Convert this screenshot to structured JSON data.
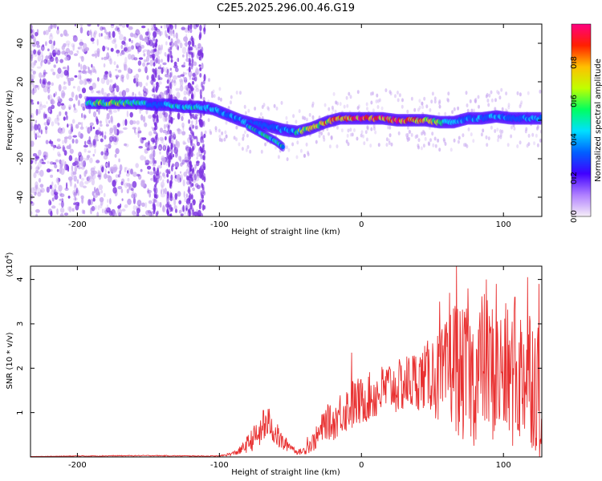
{
  "title": "C2E5.2025.296.00.46.G19",
  "chart_data": [
    {
      "type": "heatmap",
      "name": "spectrogram",
      "xlabel": "Height of straight line (km)",
      "ylabel": "Frequency (Hz)",
      "xlim": [
        -233,
        127
      ],
      "ylim": [
        -50,
        50
      ],
      "xticks": [
        -200,
        -100,
        0,
        100
      ],
      "yticks": [
        -40,
        -20,
        0,
        20,
        40
      ],
      "colorbar": {
        "label": "Normalized spectral amplitude",
        "range": [
          0,
          1
        ],
        "ticks": [
          "0.0",
          "0.2",
          "0.4",
          "0.6",
          "0.8"
        ],
        "tick_values": [
          0,
          0.2,
          0.4,
          0.6,
          0.8
        ],
        "colors": [
          "#f6eef8",
          "#b080ff",
          "#4000ff",
          "#0060ff",
          "#00e0ff",
          "#00ff60",
          "#c0ff00",
          "#ffc000",
          "#ff2000",
          "#ff0080"
        ]
      },
      "ridge": {
        "x": [
          -193,
          -185,
          -175,
          -165,
          -155,
          -145,
          -135,
          -125,
          -115,
          -105,
          -95,
          -85,
          -75,
          -65,
          -55,
          -45,
          -35,
          -25,
          -15,
          -5,
          5,
          15,
          25,
          35,
          45,
          55,
          65,
          75,
          85,
          95,
          105,
          115,
          125
        ],
        "y": [
          9,
          9,
          9,
          9,
          9,
          8,
          8,
          7,
          7,
          6,
          3,
          0,
          -2,
          -3,
          -5,
          -6,
          -4,
          -1,
          1,
          1,
          1,
          1,
          0,
          0,
          0,
          -1,
          -1,
          1,
          1,
          2,
          1,
          1,
          1
        ],
        "amplitude": [
          0.55,
          0.6,
          0.65,
          0.6,
          0.55,
          0.3,
          0.45,
          0.5,
          0.5,
          0.45,
          0.4,
          0.4,
          0.35,
          0.35,
          0.4,
          0.55,
          0.75,
          0.8,
          0.85,
          0.9,
          0.95,
          0.95,
          0.98,
          0.9,
          0.85,
          0.6,
          0.45,
          0.4,
          0.4,
          0.4,
          0.4,
          0.4,
          0.4
        ]
      },
      "branch": {
        "x": [
          -80,
          -75,
          -70,
          -65,
          -60,
          -55
        ],
        "y": [
          -3,
          -5,
          -7,
          -9,
          -11,
          -14
        ]
      }
    },
    {
      "type": "line",
      "name": "snr",
      "xlabel": "Height of straight line (km)",
      "ylabel": "SNR (10 * v/v)",
      "y_multiplier": "(x10^4)",
      "y_multiplier_base": "(x10",
      "y_multiplier_exp": "4",
      "y_multiplier_close": ")",
      "xlim": [
        -233,
        127
      ],
      "ylim": [
        0,
        4.3
      ],
      "xticks": [
        -200,
        -100,
        0,
        100
      ],
      "yticks": [
        1,
        2,
        3,
        4
      ],
      "color": "#e83030",
      "series": [
        {
          "name": "SNR",
          "x": [
            -233,
            -200,
            -150,
            -110,
            -100,
            -95,
            -90,
            -85,
            -80,
            -75,
            -70,
            -65,
            -60,
            -55,
            -50,
            -45,
            -40,
            -35,
            -30,
            -25,
            -20,
            -15,
            -10,
            -5,
            0,
            5,
            10,
            15,
            20,
            25,
            30,
            35,
            40,
            45,
            50,
            55,
            60,
            65,
            70,
            75,
            80,
            85,
            90,
            95,
            100,
            105,
            110,
            115,
            120,
            125,
            127
          ],
          "y": [
            0.01,
            0.02,
            0.03,
            0.02,
            0.02,
            0.05,
            0.08,
            0.15,
            0.3,
            0.45,
            0.55,
            0.8,
            0.5,
            0.3,
            0.25,
            0.1,
            0.15,
            0.3,
            0.5,
            0.8,
            0.75,
            1.0,
            1.1,
            1.2,
            1.25,
            1.35,
            1.4,
            1.5,
            1.6,
            1.55,
            1.65,
            1.7,
            1.75,
            1.8,
            1.9,
            1.7,
            1.8,
            2.2,
            1.8,
            1.9,
            1.7,
            2.2,
            2.0,
            1.8,
            1.9,
            1.8,
            1.7,
            2.0,
            1.9,
            1.5,
            1.4
          ],
          "noise_amplitude": [
            0,
            0.01,
            0.01,
            0.01,
            0.01,
            0.03,
            0.05,
            0.1,
            0.2,
            0.3,
            0.3,
            0.35,
            0.3,
            0.2,
            0.1,
            0.05,
            0.1,
            0.2,
            0.3,
            0.4,
            0.4,
            0.5,
            0.55,
            0.6,
            0.55,
            0.55,
            0.6,
            0.6,
            0.6,
            0.6,
            0.65,
            0.7,
            0.7,
            0.75,
            0.9,
            1.1,
            1.3,
            1.5,
            1.5,
            1.5,
            1.5,
            1.6,
            1.6,
            1.6,
            1.6,
            1.6,
            1.6,
            1.7,
            1.7,
            1.6,
            1.5
          ],
          "peaks": [
            {
              "x": -69,
              "y": 1.05
            },
            {
              "x": -38,
              "y": 0.45
            },
            {
              "x": -7,
              "y": 2.35
            },
            {
              "x": 55,
              "y": 3.5
            },
            {
              "x": 62,
              "y": 3.7
            },
            {
              "x": 67,
              "y": 4.3
            },
            {
              "x": 75,
              "y": 3.8
            },
            {
              "x": 88,
              "y": 4.0
            },
            {
              "x": 95,
              "y": 3.9
            },
            {
              "x": 108,
              "y": 3.6
            },
            {
              "x": 117,
              "y": 4.05
            },
            {
              "x": 125,
              "y": 3.9
            }
          ]
        }
      ]
    }
  ]
}
